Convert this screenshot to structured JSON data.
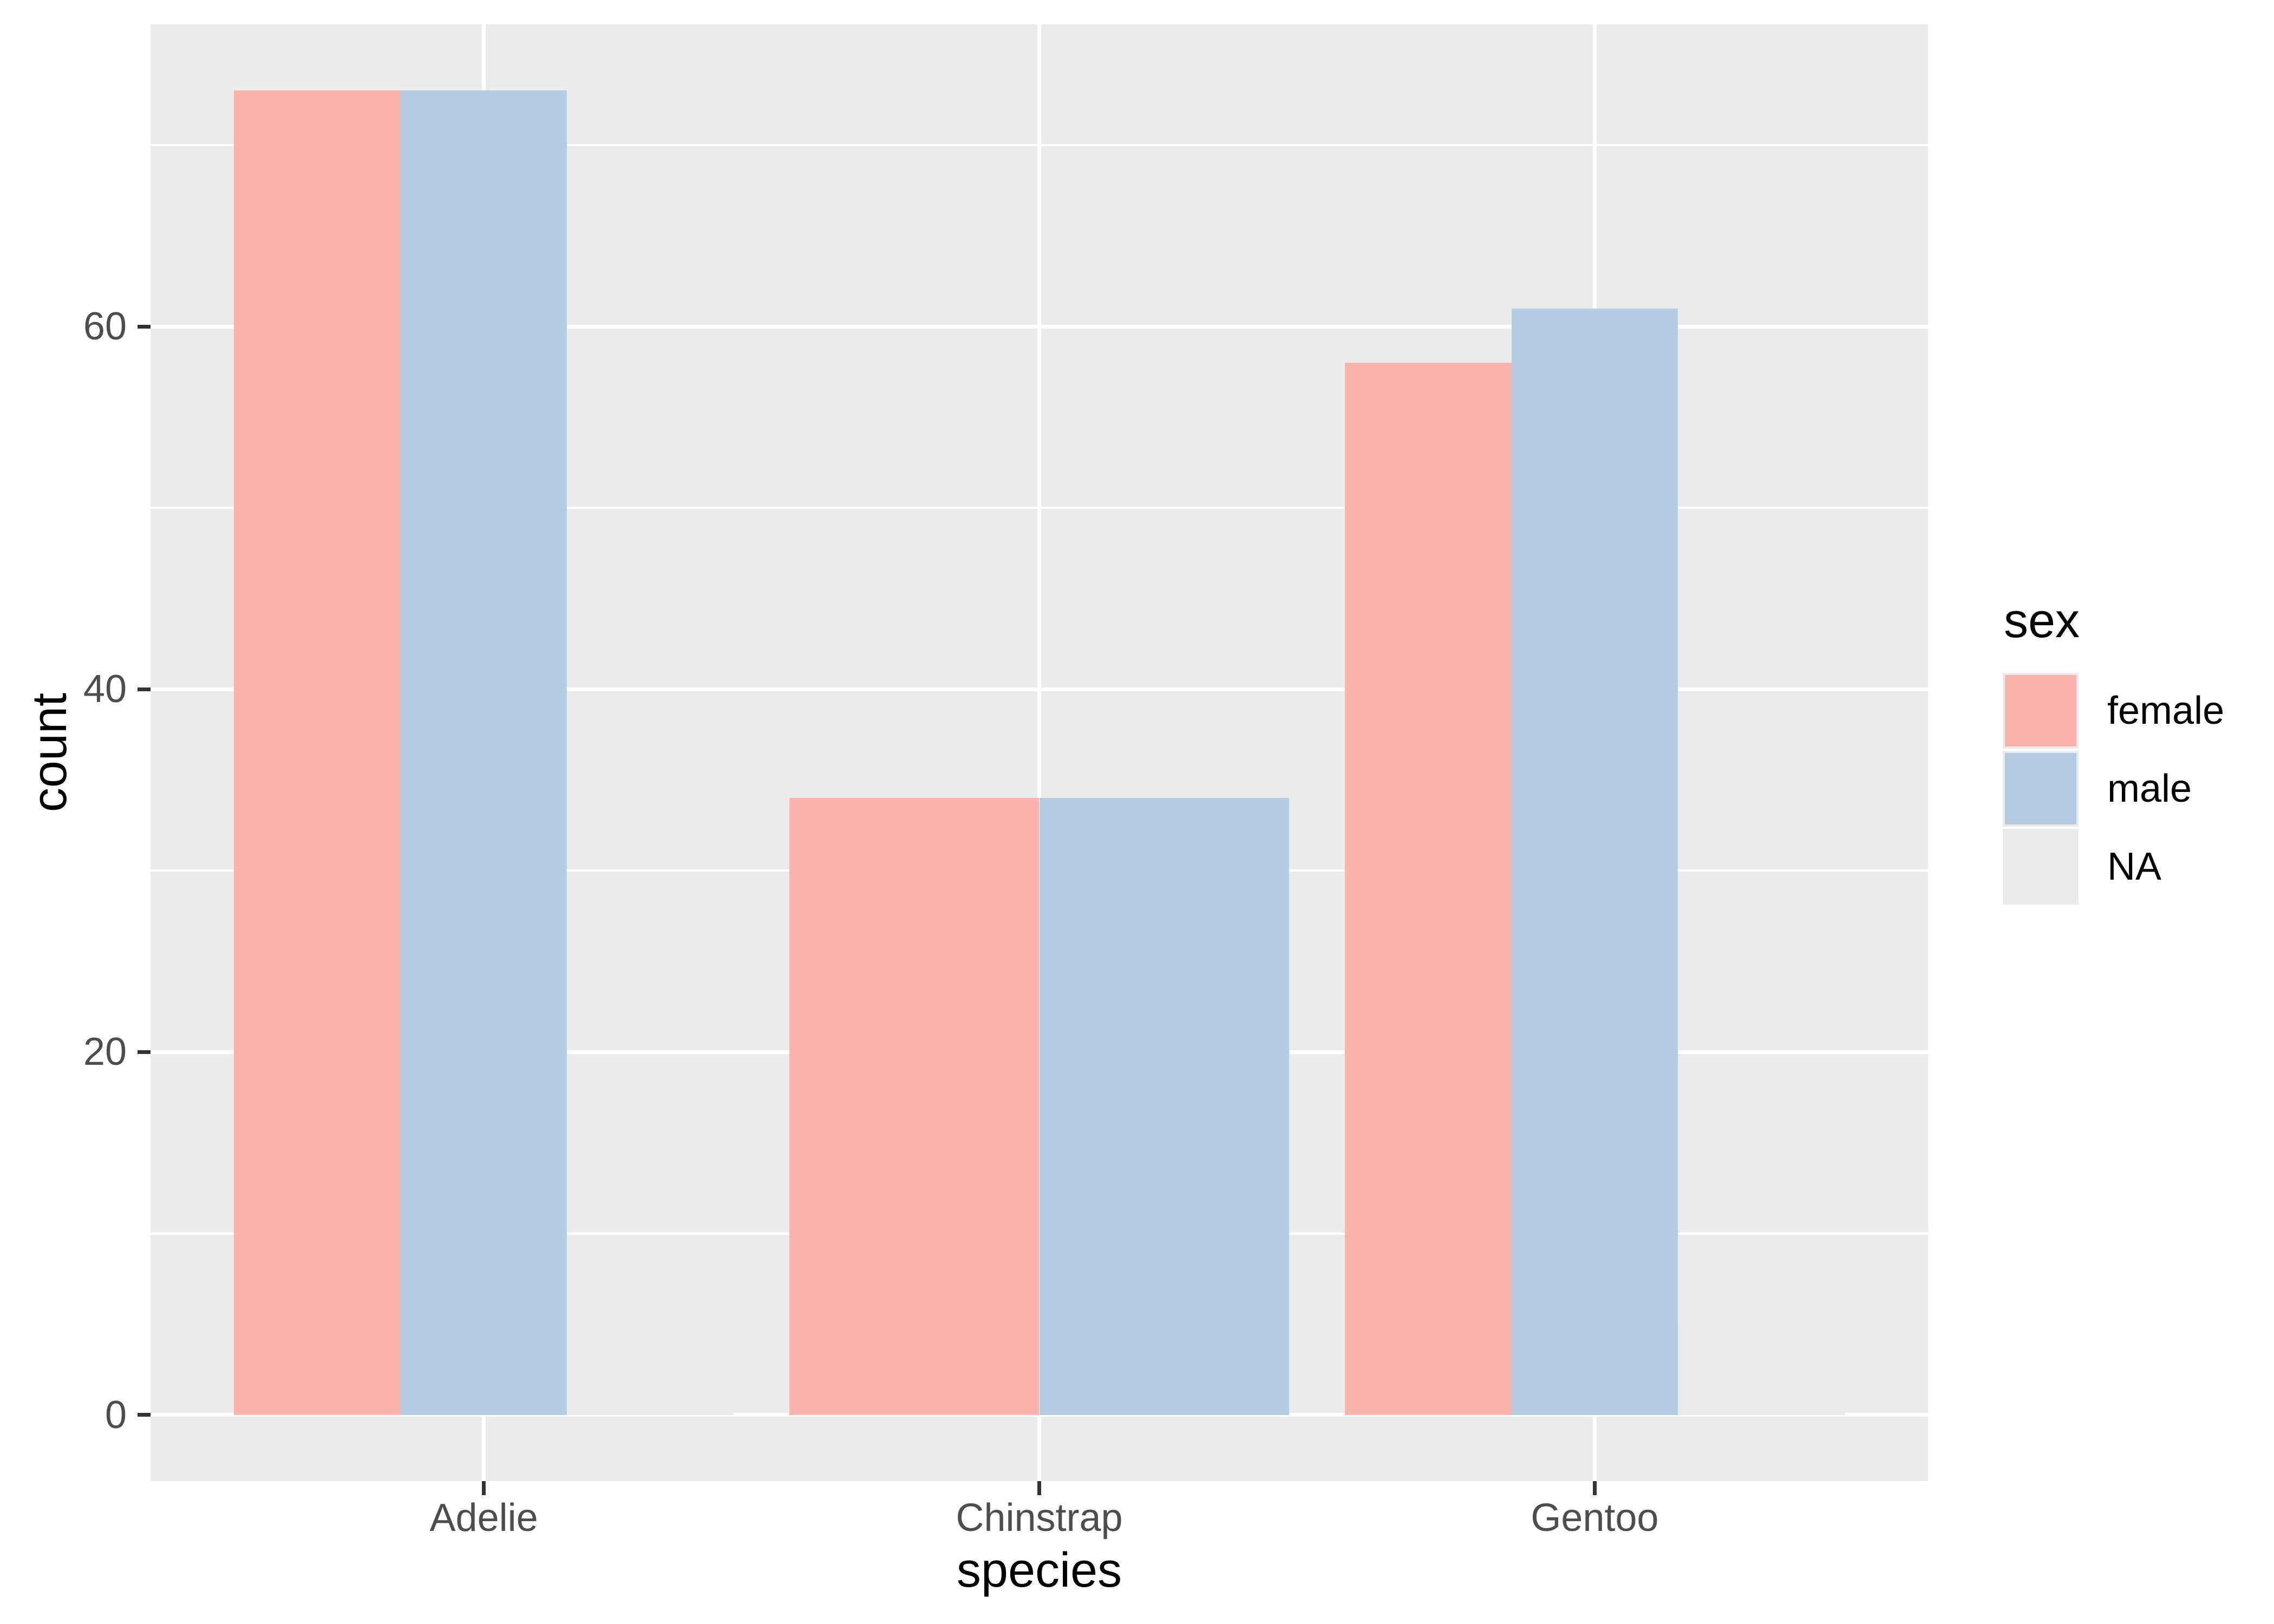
{
  "chart_data": {
    "type": "bar",
    "title": "",
    "xlabel": "species",
    "ylabel": "count",
    "categories": [
      "Adelie",
      "Chinstrap",
      "Gentoo"
    ],
    "series": [
      {
        "name": "female",
        "color": "#FAB4AD",
        "values": [
          73,
          34,
          58
        ]
      },
      {
        "name": "male",
        "color": "#B4CDE2",
        "values": [
          73,
          34,
          61
        ]
      },
      {
        "name": "NA",
        "color": "#EAEAEA",
        "values": [
          6,
          null,
          5
        ]
      }
    ],
    "bar_layout": "dodge",
    "ylim": [
      -3.65,
      76.65
    ],
    "yticks": [
      {
        "value": 0,
        "label": "0"
      },
      {
        "value": 20,
        "label": "20"
      },
      {
        "value": 40,
        "label": "40"
      },
      {
        "value": 60,
        "label": "60"
      }
    ],
    "yminor": [
      10,
      30,
      50,
      70
    ],
    "grid": "white-on-grey",
    "legend": {
      "title": "sex",
      "position": "right"
    }
  },
  "style": {
    "page_bg": "#FFFFFF",
    "panel_bg": "#EBEBEB",
    "grid_color": "#FFFFFF",
    "tick_mark_color": "#333333",
    "axis_text_color": "#4D4D4D",
    "title_color": "#000000",
    "legend_key_bg": "#EBEBEB"
  }
}
